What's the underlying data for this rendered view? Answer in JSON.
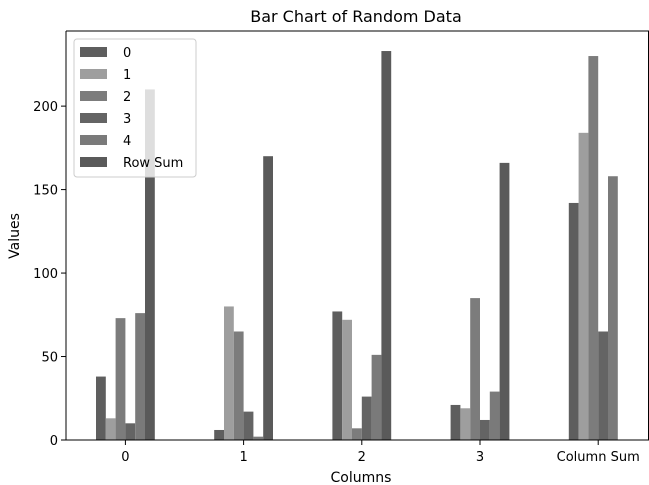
{
  "chart_data": {
    "type": "bar",
    "title": "Bar Chart of Random Data",
    "xlabel": "Columns",
    "ylabel": "Values",
    "categories": [
      "0",
      "1",
      "2",
      "3",
      "Column Sum"
    ],
    "ylim": [
      0,
      245
    ],
    "yticks": [
      0,
      50,
      100,
      150,
      200
    ],
    "grid": false,
    "legend_position": "top-left",
    "series": [
      {
        "name": "0",
        "color": "#5e5e5e",
        "values": [
          38,
          6,
          77,
          21,
          142
        ]
      },
      {
        "name": "1",
        "color": "#9e9e9e",
        "values": [
          13,
          80,
          72,
          19,
          184
        ]
      },
      {
        "name": "2",
        "color": "#7c7c7c",
        "values": [
          73,
          65,
          7,
          85,
          230
        ]
      },
      {
        "name": "3",
        "color": "#646464",
        "values": [
          10,
          17,
          26,
          12,
          65
        ]
      },
      {
        "name": "4",
        "color": "#7a7a7a",
        "values": [
          76,
          2,
          51,
          29,
          158
        ]
      },
      {
        "name": "Row Sum",
        "color": "#5a5a5a",
        "values": [
          210,
          170,
          233,
          166,
          null
        ]
      }
    ]
  }
}
